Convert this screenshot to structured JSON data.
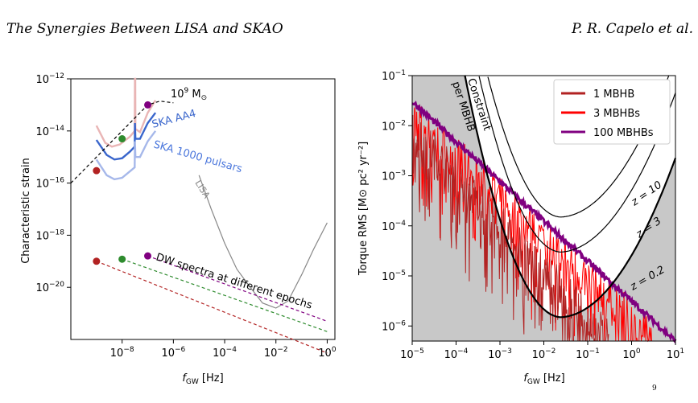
{
  "header": {
    "left": "The Synergies Between LISA and SKAO",
    "right": "P. R. Capelo et al."
  },
  "footer_mark": "9",
  "chart_data": [
    {
      "type": "line",
      "panel": "left",
      "xscale": "log",
      "yscale": "log",
      "xlim": [
        1e-10,
        2
      ],
      "ylim": [
        1e-22,
        1e-12
      ],
      "xlabel_main": "f",
      "xlabel_sub": "GW",
      "xlabel_unit": " [Hz]",
      "ylabel": "Characteristic strain",
      "xticks": [
        {
          "base": "10",
          "exp": "−8",
          "value": 1e-08
        },
        {
          "base": "10",
          "exp": "−6",
          "value": 1e-06
        },
        {
          "base": "10",
          "exp": "−4",
          "value": 0.0001
        },
        {
          "base": "10",
          "exp": "−2",
          "value": 0.01
        },
        {
          "base": "10",
          "exp": "0",
          "value": 1
        }
      ],
      "yticks": [
        {
          "base": "10",
          "exp": "−20",
          "value": 1e-20
        },
        {
          "base": "10",
          "exp": "−18",
          "value": 1e-18
        },
        {
          "base": "10",
          "exp": "−16",
          "value": 1e-16
        },
        {
          "base": "10",
          "exp": "−14",
          "value": 1e-14
        },
        {
          "base": "10",
          "exp": "−12",
          "value": 1e-12
        }
      ],
      "labels": {
        "mass_pre": "10",
        "mass_exp": "9",
        "mass_post": " M",
        "mass_sub": "⊙",
        "ska_aa4": "SKA AA4",
        "ska_1000": "SKA 1000 pulsars",
        "lisa": "LISA",
        "dw": "DW spectra at different epochs"
      },
      "colors": {
        "ska_aa4": "#3a66cc",
        "ska_1000": "#a6b8ea",
        "ska_pink": "#e9b5b5",
        "lisa": "#888888",
        "red": "#b22222",
        "green": "#2e8b2e",
        "purple": "#800080"
      },
      "series": [
        {
          "key": "ska_pink",
          "width": 2.4,
          "points": [
            [
              1e-09,
              1.6e-14
            ],
            [
              2.2e-09,
              3.5e-15
            ],
            [
              4e-09,
              2.5e-15
            ],
            [
              8e-09,
              3e-15
            ],
            [
              2e-08,
              6e-15
            ],
            [
              3.1e-08,
              1e-14
            ],
            [
              3.16e-08,
              1e-12
            ],
            [
              3.25e-08,
              1e-12
            ],
            [
              3.3e-08,
              1.2e-14
            ],
            [
              5e-08,
              9e-15
            ],
            [
              1e-07,
              5e-14
            ],
            [
              2e-07,
              1.5e-13
            ]
          ]
        },
        {
          "key": "ska_aa4",
          "width": 2.4,
          "points": [
            [
              1e-09,
              4.5e-15
            ],
            [
              2.5e-09,
              1.2e-15
            ],
            [
              5e-09,
              8e-16
            ],
            [
              1e-08,
              9e-16
            ],
            [
              2e-08,
              1.6e-15
            ],
            [
              3.1e-08,
              2.5e-15
            ],
            [
              3.16e-08,
              2e-14
            ],
            [
              3.3e-08,
              5e-15
            ],
            [
              5e-08,
              5e-15
            ],
            [
              1e-07,
              2e-14
            ],
            [
              2e-07,
              5e-14
            ]
          ]
        },
        {
          "key": "ska_1000",
          "width": 2.4,
          "points": [
            [
              1e-09,
              8e-16
            ],
            [
              2.5e-09,
              2e-16
            ],
            [
              5e-09,
              1.4e-16
            ],
            [
              1e-08,
              1.6e-16
            ],
            [
              2e-08,
              2.8e-16
            ],
            [
              3.1e-08,
              4e-16
            ],
            [
              3.16e-08,
              4e-15
            ],
            [
              3.3e-08,
              1e-15
            ],
            [
              5e-08,
              1e-15
            ],
            [
              1e-07,
              4e-15
            ],
            [
              2e-07,
              1e-14
            ]
          ]
        },
        {
          "key": "lisa",
          "width": 1.2,
          "points": [
            [
              1e-05,
              2e-16
            ],
            [
              3e-05,
              1e-17
            ],
            [
              0.0001,
              5e-19
            ],
            [
              0.0003,
              5e-20
            ],
            [
              0.001,
              1e-20
            ],
            [
              0.003,
              2.5e-21
            ],
            [
              0.01,
              1.6e-21
            ],
            [
              0.03,
              3e-21
            ],
            [
              0.1,
              3e-20
            ],
            [
              0.3,
              3e-19
            ],
            [
              1,
              3e-18
            ]
          ]
        },
        {
          "key": "red",
          "width": 1.2,
          "dash": true,
          "points": [
            [
              1e-09,
              1e-19
            ],
            [
              1,
              3e-23
            ]
          ]
        },
        {
          "key": "green",
          "width": 1.2,
          "dash": true,
          "points": [
            [
              1e-08,
              1.2e-19
            ],
            [
              1,
              2e-22
            ]
          ]
        },
        {
          "key": "purple",
          "width": 1.2,
          "dash": true,
          "points": [
            [
              1e-07,
              1.6e-19
            ],
            [
              1,
              5e-22
            ]
          ]
        },
        {
          "key": "black",
          "width": 1.2,
          "dash": true,
          "points": [
            [
              1e-10,
              1e-16
            ],
            [
              1e-07,
              1e-13
            ],
            [
              3e-07,
              1.4e-13
            ],
            [
              1e-06,
              1.2e-13
            ]
          ]
        }
      ],
      "dots": [
        {
          "key": "red",
          "x": 1e-09,
          "y": 3e-16
        },
        {
          "key": "green",
          "x": 1e-08,
          "y": 5e-15
        },
        {
          "key": "purple",
          "x": 1e-07,
          "y": 1e-13
        },
        {
          "key": "red",
          "x": 1e-09,
          "y": 1e-19
        },
        {
          "key": "green",
          "x": 1e-08,
          "y": 1.2e-19
        },
        {
          "key": "purple",
          "x": 1e-07,
          "y": 1.6e-19
        }
      ]
    },
    {
      "type": "line",
      "panel": "right",
      "xscale": "log",
      "yscale": "log",
      "xlim": [
        1e-05,
        10
      ],
      "ylim": [
        5e-07,
        0.1
      ],
      "xlabel_main": "f",
      "xlabel_sub": "GW",
      "xlabel_unit": " [Hz]",
      "ylabel": "Torque RMS [M⊙ pc² yr⁻²]",
      "xticks": [
        {
          "base": "10",
          "exp": "−5",
          "value": 1e-05
        },
        {
          "base": "10",
          "exp": "−4",
          "value": 0.0001
        },
        {
          "base": "10",
          "exp": "−3",
          "value": 0.001
        },
        {
          "base": "10",
          "exp": "−2",
          "value": 0.01
        },
        {
          "base": "10",
          "exp": "−1",
          "value": 0.1
        },
        {
          "base": "10",
          "exp": "0",
          "value": 1
        },
        {
          "base": "10",
          "exp": "1",
          "value": 10
        }
      ],
      "yticks": [
        {
          "base": "10",
          "exp": "−6",
          "value": 1e-06
        },
        {
          "base": "10",
          "exp": "−5",
          "value": 1e-05
        },
        {
          "base": "10",
          "exp": "−4",
          "value": 0.0001
        },
        {
          "base": "10",
          "exp": "−3",
          "value": 0.001
        },
        {
          "base": "10",
          "exp": "−2",
          "value": 0.01
        },
        {
          "base": "10",
          "exp": "−1",
          "value": 0.1
        }
      ],
      "legend": [
        {
          "name": "1 MBHB",
          "color": "#b22222"
        },
        {
          "name": "3 MBHBs",
          "color": "#ff0000"
        },
        {
          "name": "100 MBHBs",
          "color": "#800080"
        }
      ],
      "legend_position": "top-right",
      "annotations": {
        "constraint_1": "Constraint",
        "constraint_2": "per MBHB",
        "z10": "z = 10",
        "z3": "z = 3",
        "z02": "z = 0.2"
      },
      "constraint_curves": [
        {
          "label": "z = 0.2",
          "min_x": 0.025,
          "min_y": 1.5e-06,
          "width": 2.2
        },
        {
          "label": "z = 3",
          "min_x": 0.025,
          "min_y": 3e-05,
          "width": 1.2
        },
        {
          "label": "z = 10",
          "min_x": 0.025,
          "min_y": 0.00015,
          "width": 1.2
        }
      ],
      "series": [
        {
          "name": "100 MBHBs",
          "color": "#800080",
          "x": [
            1e-05,
            10
          ],
          "y": [
            0.03,
            5e-07
          ]
        },
        {
          "name": "3 MBHBs",
          "color": "#ff0000",
          "x": [
            1e-05,
            3
          ],
          "y": [
            0.015,
            5e-07
          ]
        },
        {
          "name": "1 MBHB",
          "color": "#b22222",
          "x": [
            1e-05,
            0.3
          ],
          "y": [
            0.008,
            5e-07
          ]
        }
      ]
    }
  ]
}
